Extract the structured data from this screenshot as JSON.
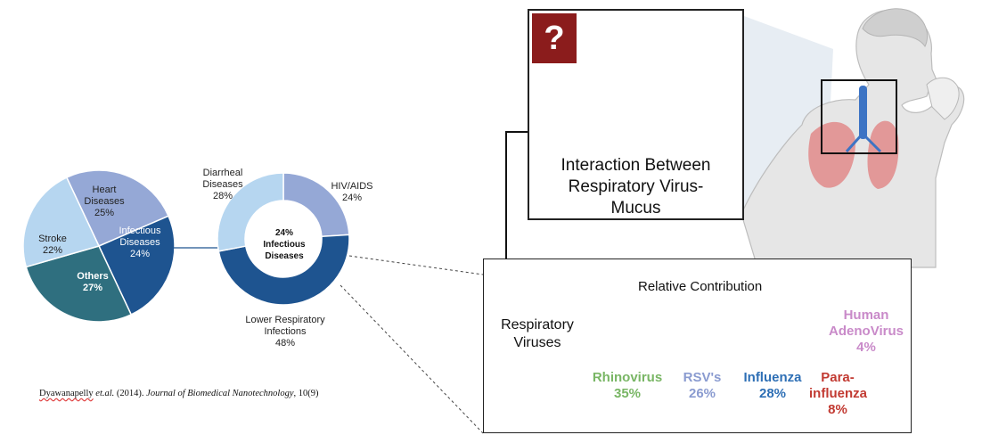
{
  "pie": {
    "slices": [
      {
        "label_lines": [
          "Heart",
          "Diseases"
        ],
        "value": 25,
        "value_text": "25%",
        "color": "#95a8d6"
      },
      {
        "label_lines": [
          "Infectious",
          "Diseases"
        ],
        "value": 24,
        "value_text": "24%",
        "color": "#1e5490"
      },
      {
        "label_lines": [
          "Others"
        ],
        "value": 27,
        "value_text": "27%",
        "color": "#2f6f7f"
      },
      {
        "label_lines": [
          "Stroke"
        ],
        "value": 22,
        "value_text": "22%",
        "color": "#b6d6f0"
      }
    ]
  },
  "donut": {
    "center_lines": [
      "24%",
      "Infectious",
      "Diseases"
    ],
    "slices": [
      {
        "label_lines": [
          "HIV/AIDS"
        ],
        "value": 24,
        "value_text": "24%",
        "color": "#95a8d6"
      },
      {
        "label_lines": [
          "Lower Respiratory",
          "Infections"
        ],
        "value": 48,
        "value_text": "48%",
        "color": "#1e5490"
      },
      {
        "label_lines": [
          "Diarrheal",
          "Diseases"
        ],
        "value": 28,
        "value_text": "28%",
        "color": "#b6d6f0"
      }
    ]
  },
  "citation": {
    "author": "Dyawanapelly",
    "etal": "et.al.",
    "year": " (2014). ",
    "journal": "Journal of Biomedical Nanotechnology",
    "volume": ", 10",
    "issue": "(9)"
  },
  "mucus_panel": {
    "question_mark": "?",
    "title_lines": [
      "Interaction Between",
      "Respiratory Virus-",
      "Mucus"
    ]
  },
  "bar_panel": {
    "title": "Relative Contribution",
    "axis_label_lines": [
      "Respiratory",
      "Viruses"
    ],
    "segments": [
      {
        "name_lines": [
          "Rhinovirus"
        ],
        "value": 35,
        "value_text": "35%",
        "color": "#90c97b",
        "text_color": "#79b665"
      },
      {
        "name_lines": [
          "RSV's"
        ],
        "value": 26,
        "value_text": "26%",
        "color": "#9aacdb",
        "text_color": "#8a9bd0"
      },
      {
        "name_lines": [
          "Influenza"
        ],
        "value": 28,
        "value_text": "28%",
        "color": "#3a67b3",
        "text_color": "#2e6fb5"
      },
      {
        "name_lines": [
          "Para-",
          "influenza"
        ],
        "value": 8,
        "value_text": "8%",
        "color": "#d0484a",
        "text_color": "#c23a32"
      },
      {
        "name_lines": [
          "Human",
          "AdenoVirus"
        ],
        "value": 4,
        "value_text": "4%",
        "color": "#cf9bcf",
        "text_color": "#c98ac9"
      }
    ]
  }
}
